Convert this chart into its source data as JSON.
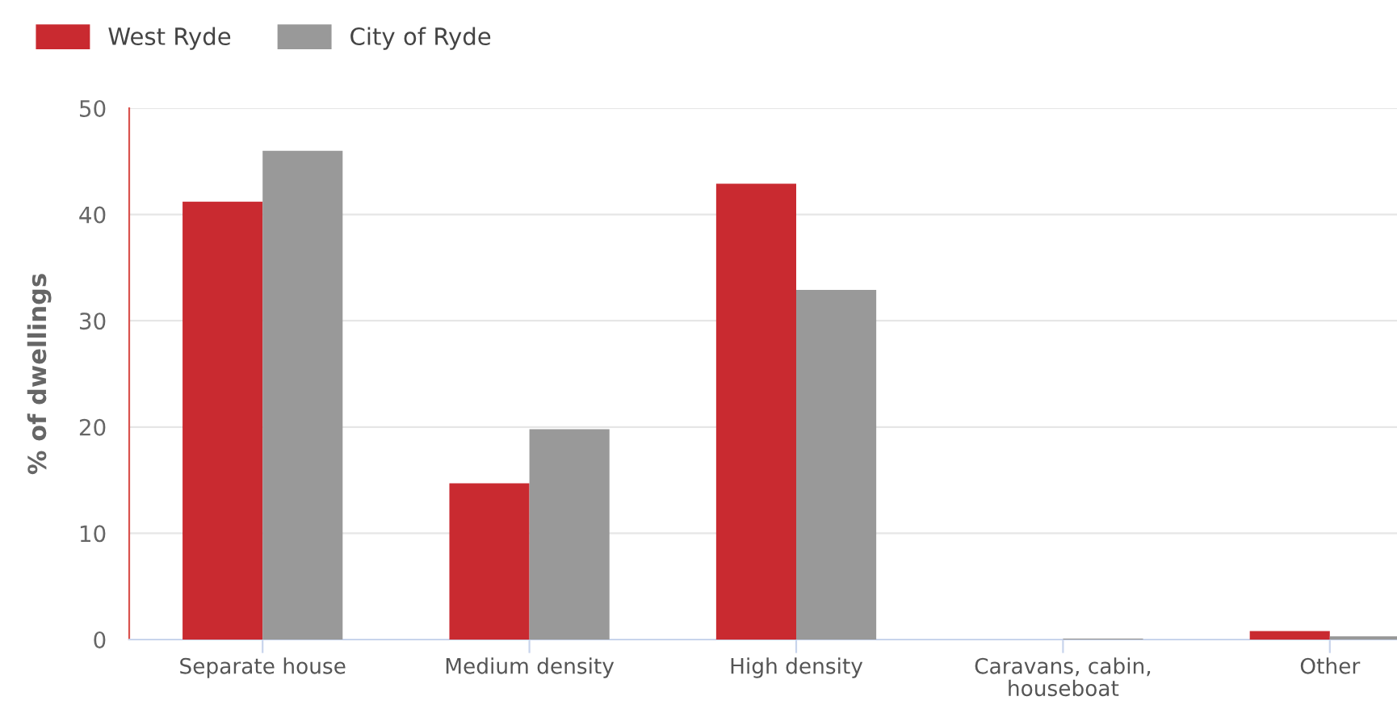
{
  "chart_data": {
    "type": "bar",
    "ylabel": "% of dwellings",
    "categories": [
      "Separate house",
      "Medium density",
      "High density",
      "Caravans, cabin,\nhouseboat",
      "Other"
    ],
    "series": [
      {
        "name": "West Ryde",
        "color": "#c92a30",
        "values": [
          41.2,
          14.7,
          42.9,
          0.0,
          0.8
        ]
      },
      {
        "name": "City of Ryde",
        "color": "#999999",
        "values": [
          46.0,
          19.8,
          32.9,
          0.1,
          0.3
        ]
      }
    ],
    "ylim": [
      0,
      50
    ],
    "yticks": [
      0,
      10,
      20,
      30,
      40,
      50
    ],
    "grid": "y",
    "legend": "top left"
  }
}
